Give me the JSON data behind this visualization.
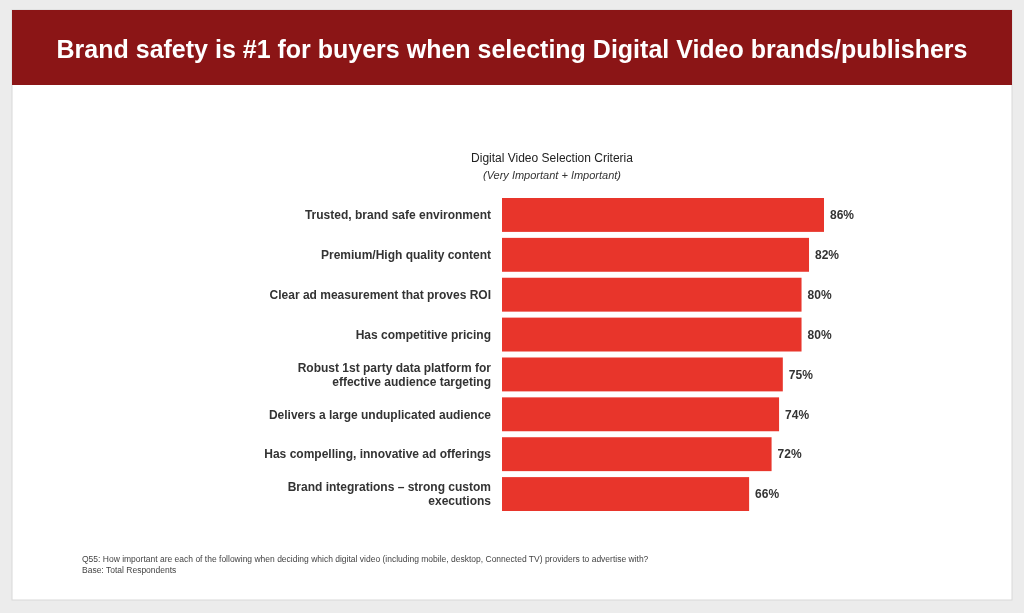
{
  "chart_data": {
    "type": "bar",
    "orientation": "horizontal",
    "title": "Brand safety is #1 for buyers when selecting Digital Video brands/publishers",
    "subtitle": "Digital Video Selection Criteria",
    "annotations": [
      "(Very Important + Important)",
      "Q55: How important are each of the following when deciding which digital video (including mobile, desktop, Connected TV) providers to advertise with?",
      "Base: Total Respondents"
    ],
    "categories": [
      "Trusted, brand safe environment",
      "Premium/High quality content",
      "Clear ad measurement that proves ROI",
      "Has competitive pricing",
      "Robust 1st party data platform for effective audience targeting",
      "Delivers a large unduplicated audience",
      "Has compelling, innovative ad offerings",
      "Brand integrations – strong custom executions"
    ],
    "values": [
      86,
      82,
      80,
      80,
      75,
      74,
      72,
      66
    ],
    "value_labels": [
      "86%",
      "82%",
      "80%",
      "80%",
      "75%",
      "74%",
      "72%",
      "66%"
    ],
    "color": "#e8352b"
  }
}
